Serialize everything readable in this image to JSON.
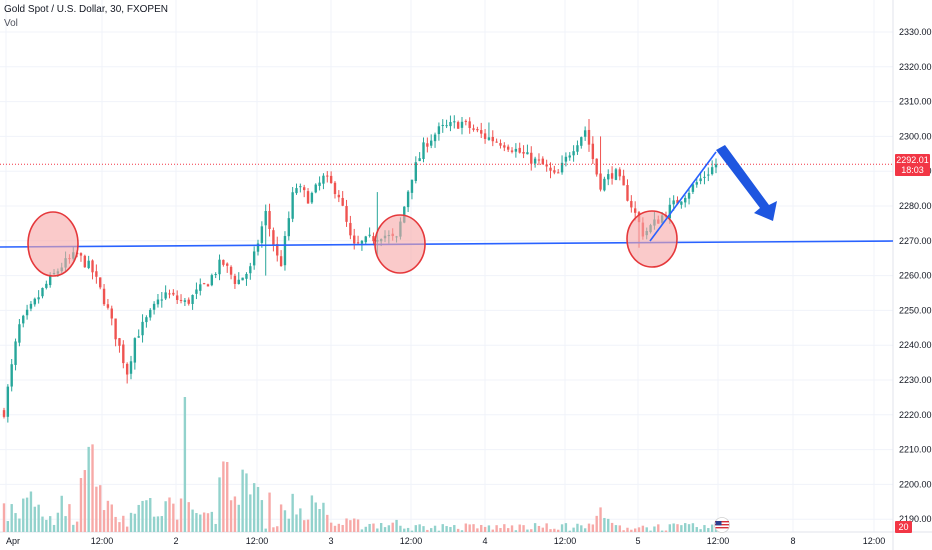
{
  "header": {
    "symbol_line": "Gold Spot / U.S. Dollar, 30, FXOPEN",
    "volume_label": "Vol"
  },
  "price_tag": {
    "price": "2292.01",
    "countdown": "18:03"
  },
  "volume_tag": "20",
  "colors": {
    "up": "#26a69a",
    "down": "#ef5350",
    "up_vol": "#92d2cc",
    "down_vol": "#f7a9a7",
    "support_line": "#2962ff",
    "circle_fill": "#f6a6a6",
    "circle_stroke": "#e5383b",
    "arrow": "#1e56e0"
  },
  "chart_data": {
    "type": "candlestick",
    "y_axis": {
      "min": 2185,
      "max": 2335,
      "ticks": [
        2190,
        2200,
        2210,
        2220,
        2230,
        2240,
        2250,
        2260,
        2270,
        2280,
        2290,
        2300,
        2310,
        2320,
        2330
      ]
    },
    "x_axis": {
      "ticks": [
        "Apr",
        "12:00",
        "2",
        "12:00",
        "3",
        "12:00",
        "4",
        "12:00",
        "5",
        "12:00",
        "8",
        "12:00"
      ]
    },
    "last_price": 2292.01,
    "support_level": 2268,
    "close_path": [
      [
        0,
        2221
      ],
      [
        2,
        2245
      ],
      [
        6,
        2258
      ],
      [
        8,
        2263
      ],
      [
        10,
        2266
      ],
      [
        12,
        2262
      ],
      [
        14,
        2252
      ],
      [
        17,
        2232
      ],
      [
        18,
        2242
      ],
      [
        22,
        2255
      ],
      [
        25,
        2252
      ],
      [
        28,
        2258
      ],
      [
        30,
        2264
      ],
      [
        32,
        2258
      ],
      [
        34,
        2262
      ],
      [
        36,
        2278
      ],
      [
        38,
        2262
      ],
      [
        40,
        2286
      ],
      [
        42,
        2282
      ],
      [
        44,
        2288
      ],
      [
        46,
        2284
      ],
      [
        48,
        2268
      ],
      [
        52,
        2272
      ],
      [
        54,
        2270
      ],
      [
        56,
        2288
      ],
      [
        58,
        2298
      ],
      [
        60,
        2302
      ],
      [
        63,
        2304
      ],
      [
        66,
        2300
      ],
      [
        69,
        2298
      ],
      [
        72,
        2294
      ],
      [
        74,
        2292
      ],
      [
        76,
        2288
      ],
      [
        78,
        2296
      ],
      [
        80,
        2302
      ],
      [
        82,
        2286
      ],
      [
        84,
        2290
      ],
      [
        86,
        2282
      ],
      [
        88,
        2272
      ],
      [
        90,
        2276
      ],
      [
        93,
        2282
      ],
      [
        96,
        2288
      ],
      [
        98,
        2292
      ]
    ],
    "volume_spikes": [
      [
        12,
        22
      ],
      [
        31,
        12
      ],
      [
        34,
        8
      ],
      [
        82,
        3
      ]
    ]
  }
}
